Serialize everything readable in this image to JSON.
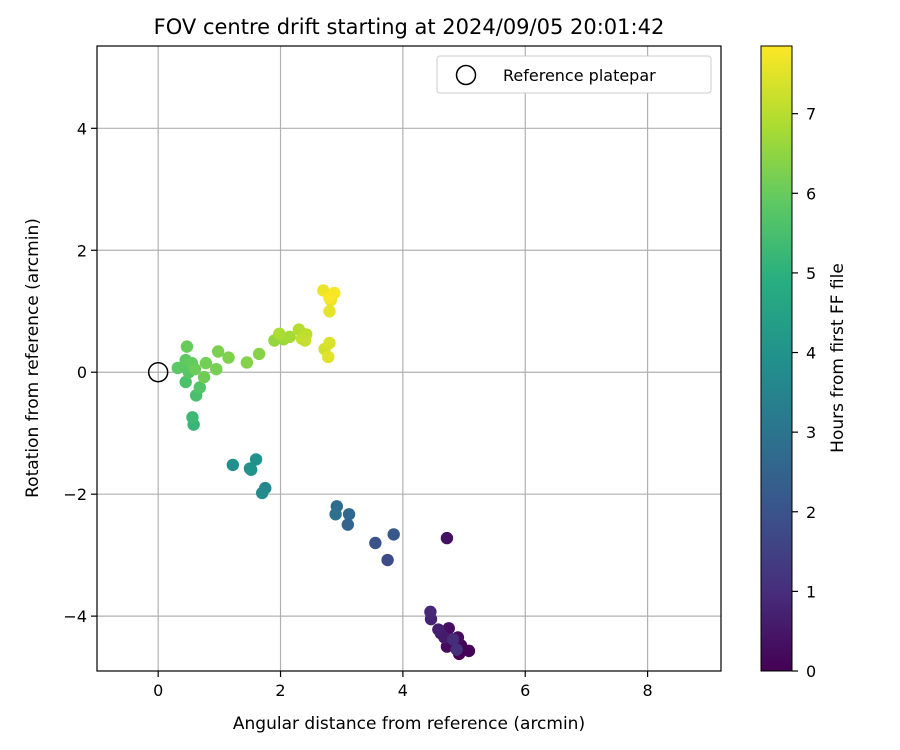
{
  "chart_data": {
    "type": "scatter",
    "title": "FOV centre drift starting at 2024/09/05 20:01:42",
    "xlabel": "Angular distance from reference (arcmin)",
    "ylabel": "Rotation from reference (arcmin)",
    "xlim": [
      -1.0,
      9.2
    ],
    "ylim": [
      -4.9,
      5.35
    ],
    "xticks": [
      0,
      2,
      4,
      6,
      8
    ],
    "yticks": [
      -4,
      -2,
      0,
      2,
      4
    ],
    "xtick_labels": [
      "0",
      "2",
      "4",
      "6",
      "8"
    ],
    "ytick_labels": [
      "−4",
      "−2",
      "0",
      "2",
      "4"
    ],
    "grid": true,
    "legend": {
      "placement": "top-right",
      "entries": [
        {
          "label": "Reference platepar",
          "marker": "hollow-circle"
        }
      ]
    },
    "reference_point": {
      "x": 0,
      "y": 0
    },
    "colorbar": {
      "label": "Hours from first FF file",
      "min": 0,
      "max": 7.85,
      "colormap": "viridis",
      "ticks": [
        0,
        1,
        2,
        3,
        4,
        5,
        6,
        7
      ],
      "tick_labels": [
        "0",
        "1",
        "2",
        "3",
        "4",
        "5",
        "6",
        "7"
      ]
    },
    "points": [
      {
        "x": 4.92,
        "y": -4.62,
        "t": 0.0
      },
      {
        "x": 5.08,
        "y": -4.57,
        "t": 0.05
      },
      {
        "x": 4.95,
        "y": -4.48,
        "t": 0.1
      },
      {
        "x": 4.8,
        "y": -4.42,
        "t": 0.15
      },
      {
        "x": 4.72,
        "y": -4.5,
        "t": 0.2
      },
      {
        "x": 4.9,
        "y": -4.35,
        "t": 0.25
      },
      {
        "x": 4.75,
        "y": -4.2,
        "t": 0.3
      },
      {
        "x": 4.72,
        "y": -2.72,
        "t": 0.35
      },
      {
        "x": 4.62,
        "y": -4.28,
        "t": 0.45
      },
      {
        "x": 4.68,
        "y": -4.35,
        "t": 0.55
      },
      {
        "x": 4.58,
        "y": -4.22,
        "t": 0.65
      },
      {
        "x": 4.46,
        "y": -4.05,
        "t": 0.75
      },
      {
        "x": 4.45,
        "y": -3.93,
        "t": 0.85
      },
      {
        "x": 4.82,
        "y": -4.38,
        "t": 0.95
      },
      {
        "x": 4.88,
        "y": -4.55,
        "t": 1.05
      },
      {
        "x": 3.75,
        "y": -3.08,
        "t": 1.8
      },
      {
        "x": 3.55,
        "y": -2.8,
        "t": 2.0
      },
      {
        "x": 3.85,
        "y": -2.66,
        "t": 2.15
      },
      {
        "x": 3.1,
        "y": -2.5,
        "t": 2.5
      },
      {
        "x": 3.12,
        "y": -2.33,
        "t": 2.65
      },
      {
        "x": 2.92,
        "y": -2.2,
        "t": 2.8
      },
      {
        "x": 2.9,
        "y": -2.33,
        "t": 2.9
      },
      {
        "x": 1.75,
        "y": -1.9,
        "t": 3.6
      },
      {
        "x": 1.7,
        "y": -1.98,
        "t": 3.7
      },
      {
        "x": 1.52,
        "y": -1.6,
        "t": 3.8
      },
      {
        "x": 1.22,
        "y": -1.52,
        "t": 3.9
      },
      {
        "x": 1.6,
        "y": -1.43,
        "t": 3.95
      },
      {
        "x": 1.5,
        "y": -1.58,
        "t": 4.0
      },
      {
        "x": 0.58,
        "y": -0.86,
        "t": 5.2
      },
      {
        "x": 0.56,
        "y": -0.74,
        "t": 5.3
      },
      {
        "x": 0.62,
        "y": -0.38,
        "t": 5.5
      },
      {
        "x": 0.45,
        "y": -0.16,
        "t": 5.6
      },
      {
        "x": 0.68,
        "y": -0.25,
        "t": 5.7
      },
      {
        "x": 0.5,
        "y": 0.0,
        "t": 5.75
      },
      {
        "x": 0.42,
        "y": 0.1,
        "t": 5.8
      },
      {
        "x": 0.32,
        "y": 0.07,
        "t": 5.85
      },
      {
        "x": 0.45,
        "y": 0.2,
        "t": 5.9
      },
      {
        "x": 0.55,
        "y": 0.15,
        "t": 5.95
      },
      {
        "x": 0.47,
        "y": 0.42,
        "t": 6.0
      },
      {
        "x": 0.6,
        "y": 0.05,
        "t": 6.05
      },
      {
        "x": 0.75,
        "y": -0.08,
        "t": 6.1
      },
      {
        "x": 0.78,
        "y": 0.15,
        "t": 6.15
      },
      {
        "x": 0.95,
        "y": 0.05,
        "t": 6.2
      },
      {
        "x": 0.98,
        "y": 0.34,
        "t": 6.25
      },
      {
        "x": 1.15,
        "y": 0.24,
        "t": 6.3
      },
      {
        "x": 1.45,
        "y": 0.16,
        "t": 6.35
      },
      {
        "x": 1.65,
        "y": 0.3,
        "t": 6.4
      },
      {
        "x": 1.9,
        "y": 0.52,
        "t": 6.55
      },
      {
        "x": 2.05,
        "y": 0.54,
        "t": 6.65
      },
      {
        "x": 2.15,
        "y": 0.58,
        "t": 6.75
      },
      {
        "x": 1.98,
        "y": 0.63,
        "t": 6.85
      },
      {
        "x": 2.3,
        "y": 0.7,
        "t": 6.95
      },
      {
        "x": 2.42,
        "y": 0.62,
        "t": 7.05
      },
      {
        "x": 2.35,
        "y": 0.55,
        "t": 7.1
      },
      {
        "x": 2.4,
        "y": 0.52,
        "t": 7.15
      },
      {
        "x": 2.72,
        "y": 0.38,
        "t": 7.3
      },
      {
        "x": 2.8,
        "y": 0.48,
        "t": 7.4
      },
      {
        "x": 2.78,
        "y": 0.25,
        "t": 7.5
      },
      {
        "x": 2.8,
        "y": 1.0,
        "t": 7.55
      },
      {
        "x": 2.82,
        "y": 1.18,
        "t": 7.6
      },
      {
        "x": 2.7,
        "y": 1.34,
        "t": 7.65
      },
      {
        "x": 2.88,
        "y": 1.3,
        "t": 7.75
      },
      {
        "x": 2.8,
        "y": 1.22,
        "t": 7.8
      }
    ]
  }
}
